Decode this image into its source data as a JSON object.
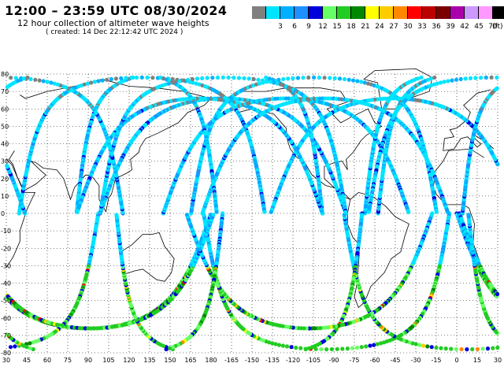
{
  "header": {
    "title": "12:00 – 23:59 UTC 08/30/2024",
    "subtitle": "12 hour collection of altimeter wave heights",
    "created": "( created: 14 Dec 22:12:42 UTC 2024 )"
  },
  "legend": {
    "unit": "(ft)",
    "bins": [
      {
        "label": "",
        "color": "#808080"
      },
      {
        "label": "3",
        "color": "#00e5ff"
      },
      {
        "label": "6",
        "color": "#00b0ff"
      },
      {
        "label": "9",
        "color": "#1e90ff"
      },
      {
        "label": "12",
        "color": "#0000dd"
      },
      {
        "label": "15",
        "color": "#66ff66"
      },
      {
        "label": "18",
        "color": "#22cc22"
      },
      {
        "label": "21",
        "color": "#008800"
      },
      {
        "label": "24",
        "color": "#ffff00"
      },
      {
        "label": "27",
        "color": "#ffcc00"
      },
      {
        "label": "30",
        "color": "#ff8800"
      },
      {
        "label": "33",
        "color": "#ff0000"
      },
      {
        "label": "36",
        "color": "#bb0000"
      },
      {
        "label": "39",
        "color": "#7a0000"
      },
      {
        "label": "42",
        "color": "#aa00aa"
      },
      {
        "label": "45",
        "color": "#cc99ff"
      },
      {
        "label": "70",
        "color": "#ff99ff"
      },
      {
        "label": "",
        "color": "#000000"
      }
    ]
  },
  "axes": {
    "lat_labels": [
      "80",
      "70",
      "60",
      "50",
      "40",
      "30",
      "20",
      "10",
      "0",
      "-10",
      "-20",
      "-30",
      "-40",
      "-50",
      "-60",
      "-70",
      "-80"
    ],
    "lon_labels": [
      "30",
      "45",
      "60",
      "75",
      "90",
      "105",
      "120",
      "135",
      "150",
      "165",
      "180",
      "-165",
      "-150",
      "-135",
      "-120",
      "-105",
      "-90",
      "-75",
      "-60",
      "-45",
      "-30",
      "-15",
      "0",
      "15",
      "30"
    ]
  }
}
